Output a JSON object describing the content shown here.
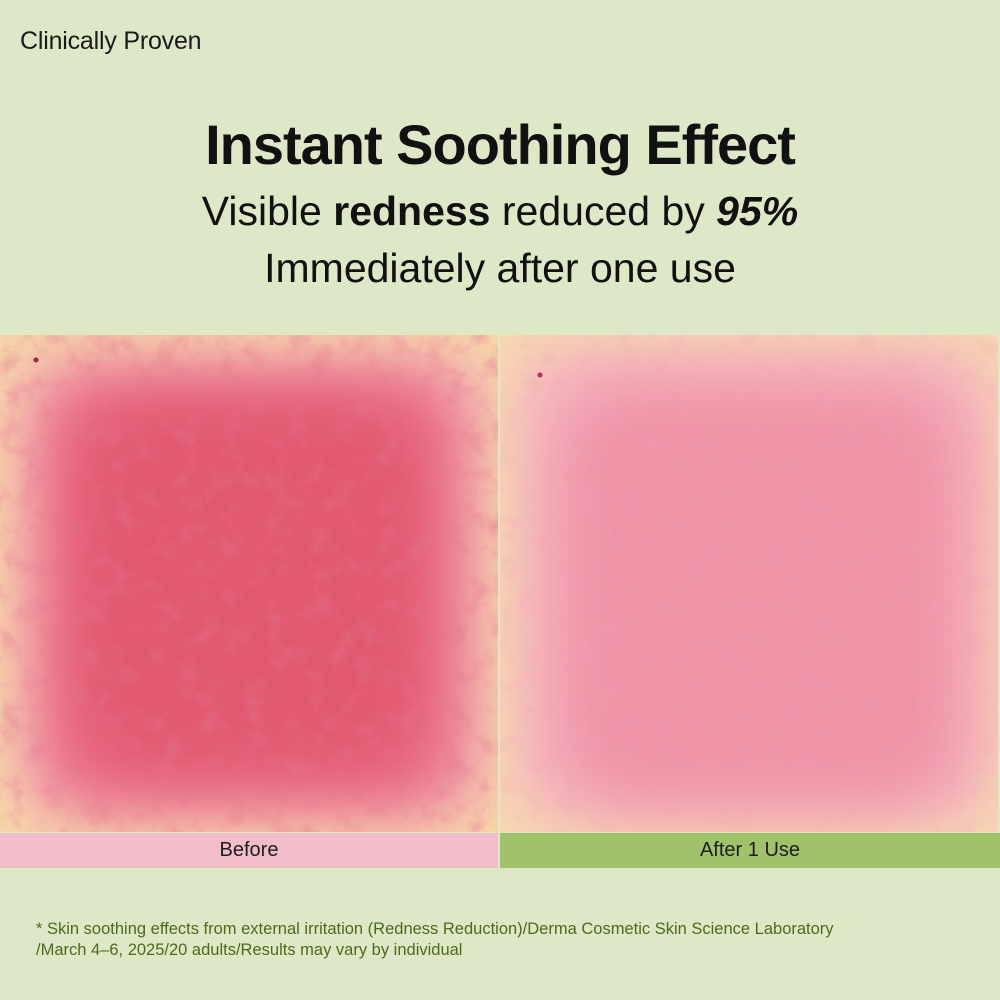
{
  "eyebrow": "Clinically Proven",
  "headline": "Instant Soothing Effect",
  "subline1": {
    "pre": "Visible ",
    "bold": "redness",
    "mid": " reduced by ",
    "percent": "95%"
  },
  "subline2": "Immediately after one use",
  "labels": {
    "before": "Before",
    "after": "After 1 Use"
  },
  "footnote": {
    "line1": "* Skin soothing effects from external irritation (Redness Reduction)/Derma Cosmetic Skin Science Laboratory",
    "line2": "/March 4–6, 2025/20 adults/Results may vary by individual"
  },
  "colors": {
    "background": "#dfe8c6",
    "before_bar": "#f3bccb",
    "after_bar": "#a0c26a",
    "footnote_text": "#4c6a1d",
    "skin_base": "#f6d7a6",
    "redness_before": "#e04a6a",
    "redness_after": "#ee93a6"
  }
}
